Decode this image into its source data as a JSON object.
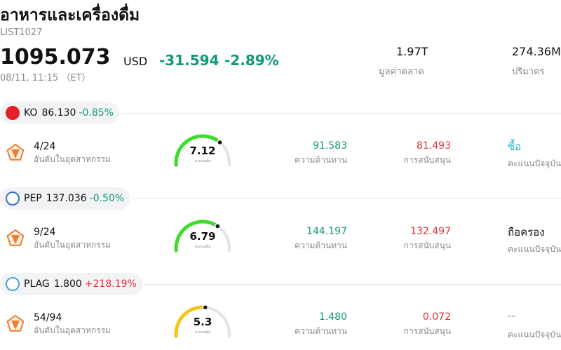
{
  "header": {
    "title": "อาหารและเครื่องดื่ม",
    "code": "LIST1027",
    "price": "1095.073",
    "currency": "USD",
    "change": "-31.594",
    "change_pct": "-2.89%",
    "timestamp": "08/11, 11:15 （ET）",
    "market_cap": {
      "value": "1.97T",
      "label": "มูลค่าตลาด"
    },
    "volume": {
      "value": "274.36M",
      "label": "ปริมาตร"
    }
  },
  "stocks": [
    {
      "ticker": "KO",
      "price": "86.130",
      "change_pct": "-0.85%",
      "rank": "4/24",
      "rank_label": "อันดับในอุตสาหกรรม",
      "score": 7.12,
      "score_label": "คะแนนหุ้น",
      "score_color": "#3ddc2a",
      "resistance": "91.583",
      "resistance_label": "ความต้านทาน",
      "support": "81.493",
      "support_label": "การสนับสนุน",
      "rating": "ซื้อ",
      "rating_color": "#2bb8d0",
      "rating_label": "คะแนนปัจจุบัน"
    },
    {
      "ticker": "PEP",
      "price": "137.036",
      "change_pct": "-0.50%",
      "rank": "9/24",
      "rank_label": "อันดับในอุตสาหกรรม",
      "score": 6.79,
      "score_label": "คะแนนหุ้น",
      "score_color": "#3ddc2a",
      "resistance": "144.197",
      "resistance_label": "ความต้านทาน",
      "support": "132.497",
      "support_label": "การสนับสนุน",
      "rating": "ถือครอง",
      "rating_color": "#111111",
      "rating_label": "คะแนนปัจจุบัน"
    },
    {
      "ticker": "PLAG",
      "price": "1.800",
      "change_pct": "+218.19%",
      "rank": "54/94",
      "rank_label": "อันดับในอุตสาหกรรม",
      "score": 5.3,
      "score_label": "คะแนนหุ้น",
      "score_color": "#f5c518",
      "resistance": "1.480",
      "resistance_label": "ความต้านทาน",
      "support": "0.072",
      "support_label": "การสนับสนุน",
      "rating": "--",
      "rating_color": "#888888",
      "rating_label": "คะแนนปัจจุบัน"
    }
  ]
}
